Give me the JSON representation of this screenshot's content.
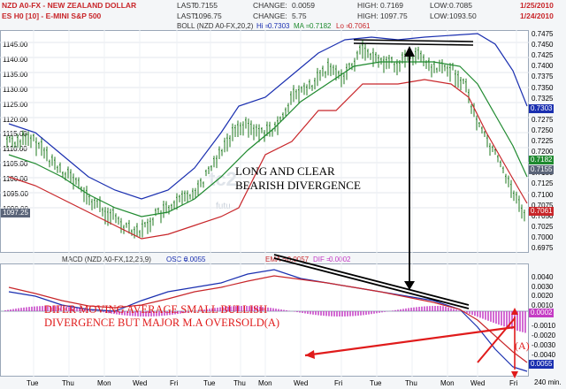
{
  "header": {
    "row1": {
      "symbol": "NZD A0-FX - NEW ZEALAND DOLLAR",
      "last_label": "LAST:",
      "last": "0.7155",
      "change_label": "CHANGE:",
      "change": "0.0059",
      "high_label": "HIGH:",
      "high": "0.7169",
      "low_label": "LOW:",
      "low": "0.7085",
      "date": "1/25/2010"
    },
    "row2": {
      "symbol": "ES H0 [10] - E-MINI S&P 500",
      "last_label": "LAST:",
      "last": "1096.75",
      "change_label": "CHANGE:",
      "change": "5.75",
      "high_label": "HIGH:",
      "high": "1097.75",
      "low_label": "LOW:",
      "low": "1093.50",
      "date": "1/24/2010"
    },
    "boll_legend": {
      "name": "BOLL (NZD A0-FX,20,2)",
      "hi_label": "Hi =",
      "hi": "0.7303",
      "ma_label": "MA =",
      "ma": "0.7182",
      "lo_label": "Lo =",
      "lo": "0.7061"
    },
    "macd_legend": {
      "name": "MACD (NZD A0-FX,12,26,9)",
      "osc_label": "OSC =",
      "osc": "0.0055",
      "ema_label": "EMA =",
      "ema": "-0.0057",
      "dif_label": "DIF =",
      "dif": "0.0002"
    }
  },
  "price_panel": {
    "left_scale": [
      "1145.00",
      "1140.00",
      "1135.00",
      "1130.00",
      "1125.00",
      "1120.00",
      "1115.00",
      "1110.00",
      "1105.00",
      "1100.00",
      "1095.00",
      "1090.00"
    ],
    "right_scale": [
      "0.7475",
      "0.7450",
      "0.7425",
      "0.7400",
      "0.7375",
      "0.7350",
      "0.7325",
      "0.7300",
      "0.7275",
      "0.7250",
      "0.7225",
      "0.7200",
      "0.7175",
      "0.7150",
      "0.7125",
      "0.7100",
      "0.7075",
      "0.7050",
      "0.7025",
      "0.7000",
      "0.6975"
    ],
    "left_badge": "1097.25",
    "right_badges": [
      {
        "value": "0.7303",
        "color": "#1a2fb0"
      },
      {
        "value": "0.7182",
        "color": "#1f8a2f"
      },
      {
        "value": "0.7155",
        "color": "#5a6478"
      },
      {
        "value": "0.7061",
        "color": "#c8262a"
      }
    ],
    "watermark": "tc2",
    "watermark2": "futu"
  },
  "macd_panel": {
    "right_scale": [
      "0.0040",
      "0.0030",
      "0.0020",
      "0.0010",
      "-0.0010",
      "-0.0020",
      "-0.0030",
      "-0.0040"
    ],
    "badges": [
      {
        "value": "0.0002",
        "color": "#c43bc4"
      },
      {
        "value": "0.0055",
        "color": "#1a2fb0"
      }
    ]
  },
  "x_axis": {
    "labels": [
      "Tue",
      "Thu",
      "Mon",
      "Wed",
      "Fri",
      "Tue",
      "Thu",
      "Mon",
      "Wed",
      "Fri",
      "Tue",
      "Thu",
      "Mon",
      "Wed",
      "Fri"
    ],
    "unit": "240 min."
  },
  "annotations": {
    "bearish": [
      "LONG AND CLEAR",
      "BEARISH DIVERGENCE"
    ],
    "bullish": [
      "DIFER MOVING AVERAGE SMALL BULLISH",
      "DIVERGENCE BUT MAJOR M.A OVERSOLD(A)"
    ],
    "marker": "(A)"
  },
  "colors": {
    "candles": "#1f7a1f",
    "boll_upper": "#1a2fb0",
    "boll_mid": "#1f8a2f",
    "boll_lower": "#c8262a",
    "macd_line": "#1a2fb0",
    "signal_line": "#c8262a",
    "histogram": "#c43bc4",
    "annotation_red": "#e01b1b",
    "header_red": "#c8262a",
    "header_blue": "#1a2fb0"
  }
}
